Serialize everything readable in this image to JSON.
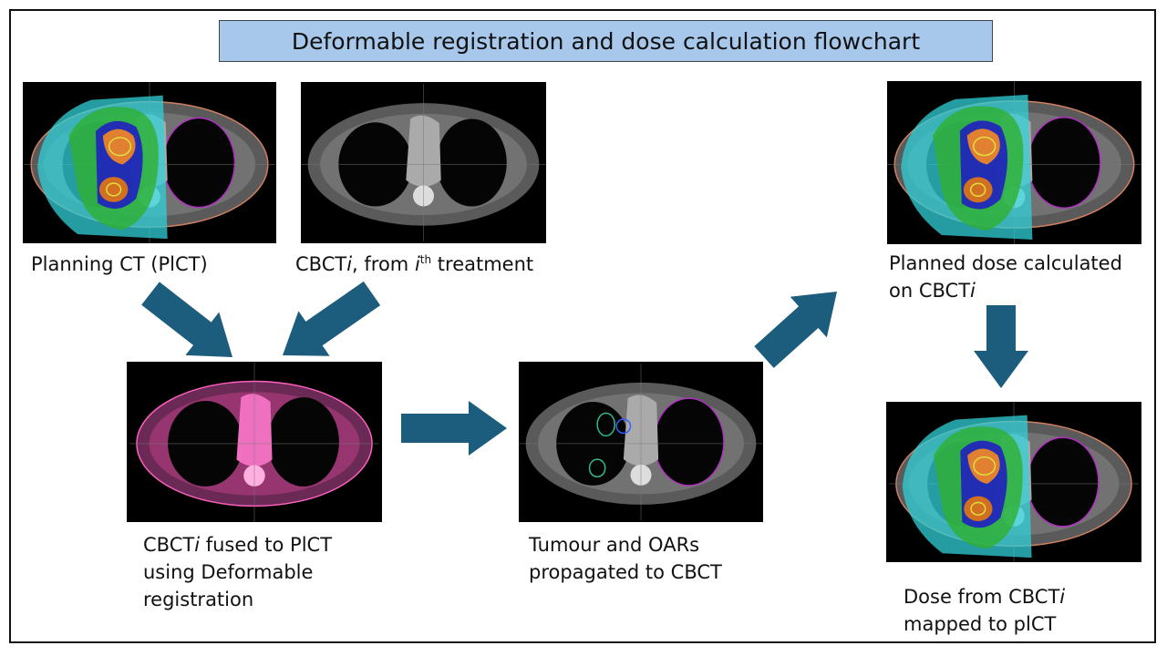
{
  "title": "Deformable registration and dose calculation flowchart",
  "labels": {
    "planning_ct": "Planning CT (PlCT)",
    "cbcti": {
      "a": "CBCT",
      "i": "i",
      "b": ", from ",
      "i2": "i",
      "sup": "th",
      "c": " treatment"
    },
    "planned_dose": {
      "line1": "Planned dose calculated",
      "line2a": "on CBCT",
      "line2i": "i"
    },
    "fused": {
      "line1a": "CBCT",
      "line1i": "i",
      "line1b": " fused to PlCT",
      "line2": "using Deformable",
      "line3": "registration"
    },
    "propagated": {
      "line1": "Tumour and OARs",
      "line2": "propagated to CBCT"
    },
    "mapped": {
      "line1a": "Dose from CBCT",
      "line1i": "i",
      "line2": "mapped to plCT"
    }
  },
  "colors": {
    "arrow": "#1c5c7c",
    "title_bg": "#a7c8ea",
    "fused_tint": "#e040a0"
  }
}
